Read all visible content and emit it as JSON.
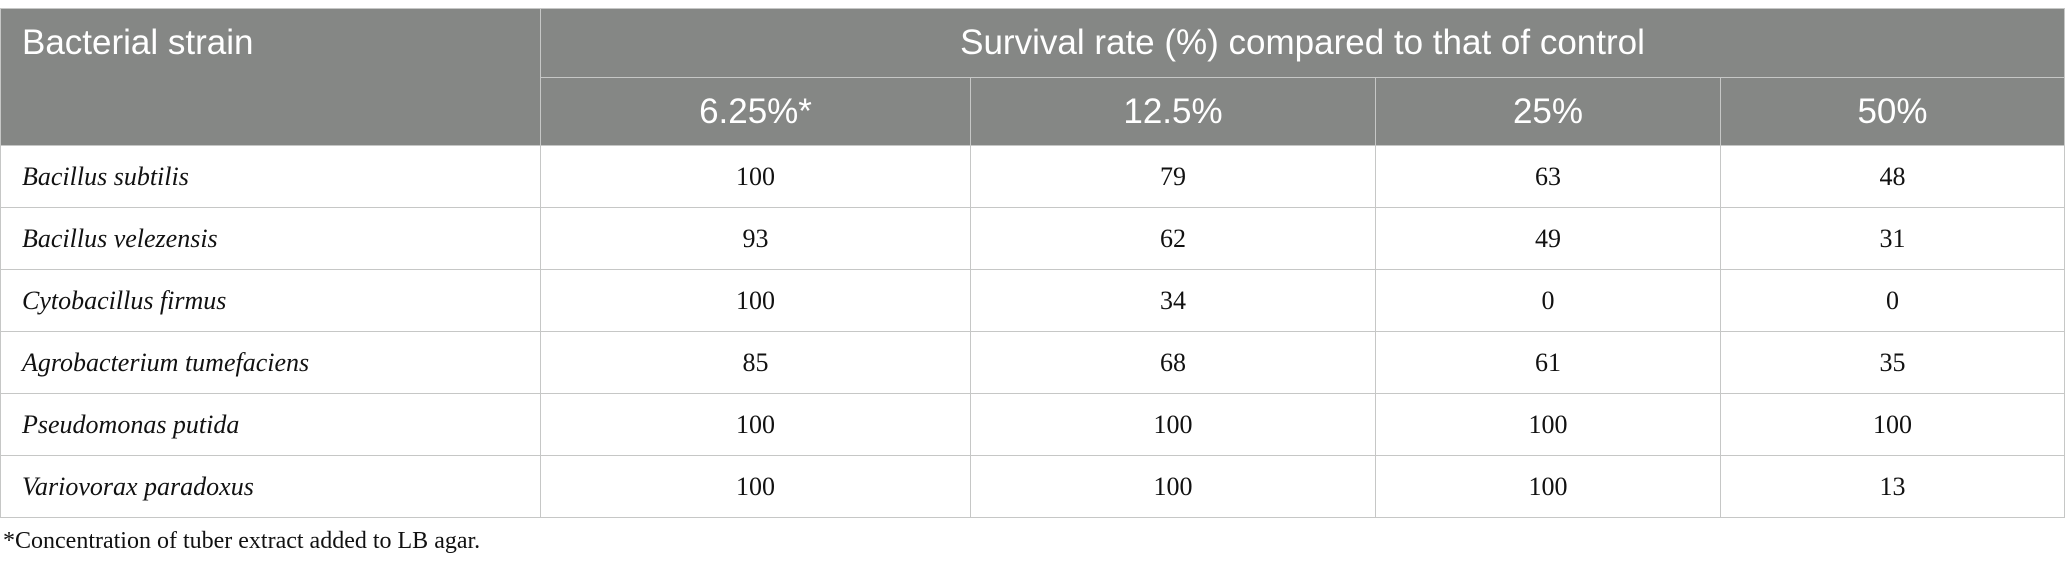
{
  "table": {
    "header": {
      "strain_label": "Bacterial strain",
      "group_label": "Survival rate (%) compared to that of control",
      "concentrations": [
        "6.25%*",
        "12.5%",
        "25%",
        "50%"
      ]
    },
    "rows": [
      {
        "strain": "Bacillus subtilis",
        "values": [
          "100",
          "79",
          "63",
          "48"
        ]
      },
      {
        "strain": "Bacillus velezensis",
        "values": [
          "93",
          "62",
          "49",
          "31"
        ]
      },
      {
        "strain": "Cytobacillus firmus",
        "values": [
          "100",
          "34",
          "0",
          "0"
        ]
      },
      {
        "strain": "Agrobacterium tumefaciens",
        "values": [
          "85",
          "68",
          "61",
          "35"
        ]
      },
      {
        "strain": "Pseudomonas putida",
        "values": [
          "100",
          "100",
          "100",
          "100"
        ]
      },
      {
        "strain": "Variovorax paradoxus",
        "values": [
          "100",
          "100",
          "100",
          "13"
        ]
      }
    ]
  },
  "footnote": "*Concentration of tuber extract added to LB agar.",
  "colors": {
    "header_bg": "#858785",
    "header_text": "#ffffff",
    "grid": "#c6c7c6"
  }
}
